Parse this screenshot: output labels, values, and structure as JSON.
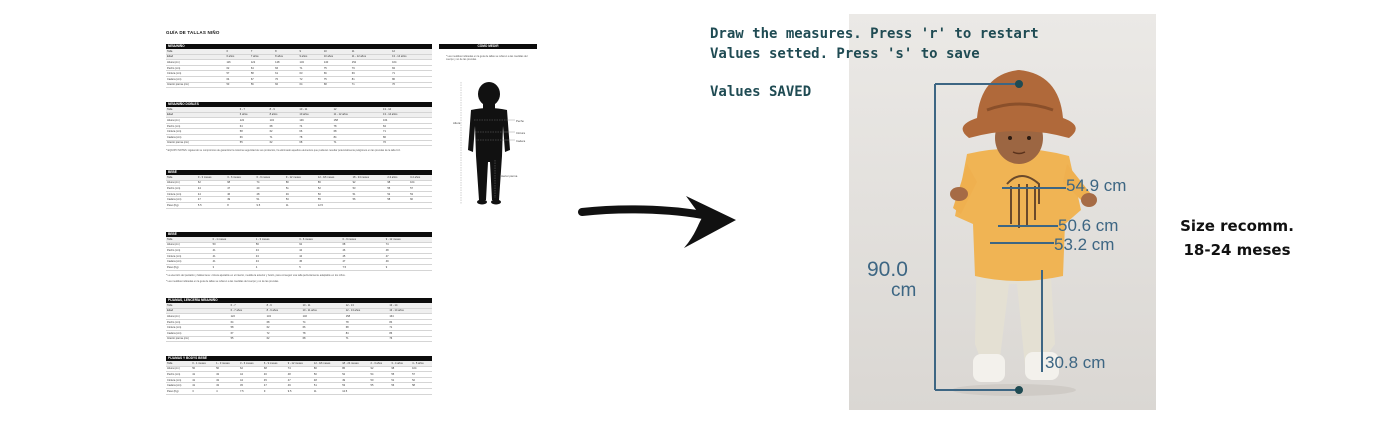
{
  "document": {
    "title": "GUÍA DE TALLAS NIÑO",
    "sections": [
      {
        "heading": "NIÑA/NIÑO",
        "header": [
          "Talla",
          "6",
          "7",
          "8",
          "9",
          "10",
          "11",
          "12"
        ],
        "sub": [
          "Edad",
          "6 años",
          "7 años",
          "8 años",
          "9 años",
          "10 años",
          "11 - 12 años",
          "13 - 14 años"
        ],
        "rows": [
          [
            "Altura (cm)",
            "116",
            "122",
            "128",
            "134",
            "140",
            "152",
            "164"
          ],
          [
            "Pecho (cm)",
            "62",
            "64",
            "66",
            "71",
            "75",
            "79",
            "84"
          ],
          [
            "Cintura (cm)",
            "57",
            "58",
            "61",
            "63",
            "66",
            "69",
            "71"
          ],
          [
            "Cadera (cm)",
            "64",
            "67",
            "70",
            "72",
            "75",
            "81",
            "86"
          ],
          [
            "Interior pierna (cm)",
            "53",
            "56",
            "60",
            "64",
            "68",
            "71",
            "76"
          ]
        ]
      },
      {
        "heading": "NIÑA/NIÑO DOBLES",
        "header": [
          "Talla",
          "6 - 7",
          "8 - 9",
          "10 - 11",
          "12",
          "13 - 14"
        ],
        "sub": [
          "Edad",
          "6 años",
          "8 años",
          "10 años",
          "11 - 12 años",
          "13 - 14 años"
        ],
        "rows": [
          [
            "Altura (cm)",
            "122",
            "134",
            "146",
            "158",
            "164"
          ],
          [
            "Pecho (cm)",
            "64",
            "68",
            "74",
            "78",
            "84"
          ],
          [
            "Cintura (cm)",
            "58",
            "62",
            "66",
            "68",
            "71"
          ],
          [
            "Cadera (cm)",
            "66",
            "71",
            "78",
            "84",
            "86"
          ],
          [
            "Interior pierna (cm)",
            "55",
            "62",
            "68",
            "71",
            "76"
          ]
        ]
      },
      {
        "heading": "BEBÉ",
        "header": [
          "Talla",
          "0 - 3 meses",
          "3 - 6 meses",
          "6 - 9 meses",
          "9 - 12 meses",
          "12 - 18 meses",
          "18 - 24 meses",
          "2-3 años",
          "3-4 años"
        ],
        "sub": [],
        "rows": [
          [
            "Altura (cm)",
            "62",
            "68",
            "74",
            "80",
            "86",
            "92",
            "98",
            "104"
          ],
          [
            "Pecho (cm)",
            "44",
            "47",
            "49",
            "51",
            "52",
            "53",
            "55",
            "57"
          ],
          [
            "Cintura (cm)",
            "44",
            "46",
            "48",
            "49",
            "50",
            "51",
            "52",
            "53"
          ],
          [
            "Cadera (cm)",
            "47",
            "49",
            "51",
            "53",
            "55",
            "56",
            "58",
            "60"
          ],
          [
            "Peso (Kg)",
            "5.5",
            "8",
            "9.5",
            "11",
            "12.5",
            "",
            "",
            ""
          ]
        ]
      },
      {
        "heading": "BEBÉ",
        "header": [
          "Talla",
          "0 - 1 meses",
          "1 - 3 meses",
          "3 - 6 meses",
          "6 - 9 meses",
          "9 - 12 meses"
        ],
        "sub": [],
        "rows": [
          [
            "Altura (cm)",
            "50",
            "56",
            "62",
            "68",
            "74"
          ],
          [
            "Pecho (cm)",
            "41",
            "43",
            "44",
            "46",
            "48"
          ],
          [
            "Cintura (cm)",
            "41",
            "43",
            "44",
            "45",
            "47"
          ],
          [
            "Cadera (cm)",
            "41",
            "43",
            "45",
            "47",
            "49"
          ],
          [
            "Peso (Kg)",
            "3",
            "4",
            "5",
            "7.5",
            "9"
          ]
        ]
      },
      {
        "heading": "PIJAMAS, LENCERÍA NIÑA/NIÑO",
        "header": [
          "Talla",
          "6 - 7",
          "8 - 9",
          "10 - 11",
          "12 - 13",
          "13 - 14"
        ],
        "sub": [
          "Edad",
          "6 - 7 años",
          "8 - 9 años",
          "10 - 11 años",
          "12 - 13 años",
          "13 - 14 años"
        ],
        "rows": [
          [
            "Altura (cm)",
            "122",
            "134",
            "146",
            "158",
            "164"
          ],
          [
            "Pecho (cm)",
            "64",
            "68",
            "74",
            "78",
            "84"
          ],
          [
            "Cintura (cm)",
            "58",
            "62",
            "66",
            "68",
            "71"
          ],
          [
            "Cadera (cm)",
            "67",
            "72",
            "78",
            "84",
            "86"
          ],
          [
            "Interior pierna (cm)",
            "55",
            "62",
            "68",
            "71",
            "76"
          ]
        ]
      },
      {
        "heading": "PIJAMAS Y BODYS BEBÉ",
        "header": [
          "Talla",
          "0 - 1 meses",
          "1 - 3 meses",
          "3 - 6 meses",
          "6 - 9 meses",
          "9 - 12 meses",
          "12 - 18 meses",
          "18 - 24 meses",
          "2 - 3 años",
          "3 - 4 años",
          "4 - 5 años"
        ],
        "sub": [],
        "rows": [
          [
            "Altura (cm)",
            "50",
            "56",
            "62",
            "68",
            "74",
            "80",
            "86",
            "92",
            "98",
            "104"
          ],
          [
            "Pecho (cm)",
            "41",
            "43",
            "44",
            "46",
            "48",
            "50",
            "52",
            "54",
            "55",
            "57"
          ],
          [
            "Cintura (cm)",
            "41",
            "43",
            "44",
            "45",
            "47",
            "48",
            "49",
            "50",
            "51",
            "52"
          ],
          [
            "Cadera (cm)",
            "41",
            "43",
            "45",
            "47",
            "49",
            "51",
            "53",
            "55",
            "56",
            "58"
          ],
          [
            "Peso (Kg)",
            "3",
            "4",
            "7.5",
            "9",
            "9.5",
            "11",
            "12.5",
            "",
            "",
            ""
          ]
        ]
      }
    ],
    "notes": [
      "* EQUIPO NOTES: siguiendo su compromiso de garantizar la máxima seguridad de sus productos, ha eliminado aquellos elementos que pudieran resultar potencialmente peligrosos en las prendas de la talla 0-6.",
      "* La elección del pantalón y faldas tiene: cintura ajustable en el interior, medida la anterior y botón, para conseguir una talla perfectamente adaptable en los niños.",
      "* Las medidas indicadas en la guía de tallas se refieren a las medidas del cuerpo y no de las prendas."
    ],
    "howto": {
      "heading": "CÓMO MEDIR",
      "note": "* Las medidas indicadas en la guía de tallas se refieren a las medidas del cuerpo y no de las prendas.",
      "labels": {
        "left": "Altura",
        "chest": "Pecho",
        "waist": "Cintura",
        "hip": "Cadera",
        "inseam": "Interior pierna"
      }
    }
  },
  "app": {
    "instruction_line1": "Draw the measures. Press 'r' to restart",
    "instruction_line2": "Values setted. Press 's' to save",
    "status": "Values SAVED",
    "measurements": {
      "chest": "54.9 cm",
      "waist": "50.6 cm",
      "hip": "53.2 cm",
      "height_value": "90.0",
      "height_unit": "cm",
      "inseam": "30.8 cm"
    },
    "overlay_color": "#3d6683",
    "text_color": "#1f4b53"
  },
  "recommendation": {
    "line1": "Size recomm.",
    "line2": "18-24 meses"
  }
}
